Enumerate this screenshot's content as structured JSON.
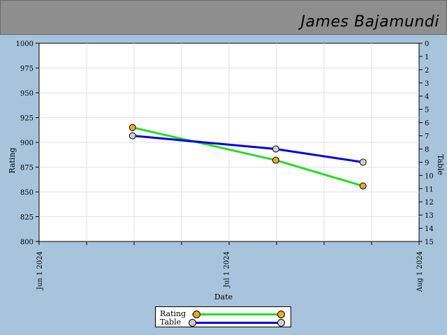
{
  "header": {
    "player_name": "James Bajamundi"
  },
  "chart_data": {
    "type": "line",
    "xlabel": "Date",
    "ylabel_left": "Rating",
    "ylabel_right": "Table",
    "x_ticks": [
      "Jun 1 2024",
      "Jul 1 2024",
      "Aug 1 2024"
    ],
    "x_range": [
      "2024-06-01",
      "2024-08-01"
    ],
    "ylim_left": [
      800,
      1000
    ],
    "ylim_right": [
      0,
      15
    ],
    "right_axis_inverted": true,
    "grid": true,
    "legend_position": "bottom-center",
    "series": [
      {
        "name": "Rating",
        "axis": "left",
        "color": "#22dd22",
        "marker_color": "#f5a623",
        "points": [
          {
            "x": "2024-06-16",
            "y": 915
          },
          {
            "x": "2024-07-09",
            "y": 882
          },
          {
            "x": "2024-07-23",
            "y": 856
          }
        ]
      },
      {
        "name": "Table",
        "axis": "right",
        "color": "#0000dd",
        "marker_color": "#d0d0d0",
        "points": [
          {
            "x": "2024-06-16",
            "y": 7
          },
          {
            "x": "2024-07-09",
            "y": 8
          },
          {
            "x": "2024-07-23",
            "y": 9
          }
        ]
      }
    ]
  }
}
